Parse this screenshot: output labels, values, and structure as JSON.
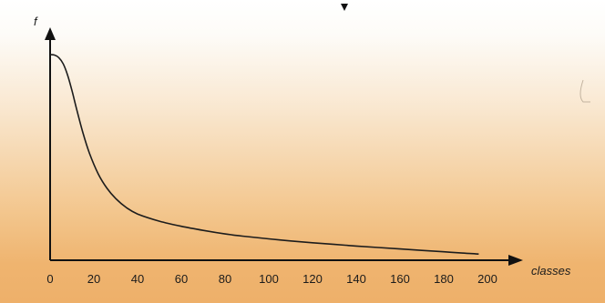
{
  "chart_data": {
    "type": "line",
    "title": "",
    "xlabel": "classes",
    "ylabel": "f",
    "xlim": [
      0,
      205
    ],
    "ylim": [
      0,
      1.05
    ],
    "x_ticks": [
      0,
      20,
      40,
      60,
      80,
      100,
      120,
      140,
      160,
      180,
      200
    ],
    "y_ticks": [],
    "grid": false,
    "legend": "none",
    "series": [
      {
        "color": "#1c1c1c",
        "x": [
          0,
          2,
          4,
          6,
          8,
          10,
          12,
          15,
          18,
          22,
          26,
          30,
          35,
          40,
          50,
          60,
          70,
          80,
          90,
          100,
          110,
          120,
          130,
          140,
          150,
          160,
          170,
          180,
          190,
          196
        ],
        "y": [
          1.0,
          0.998,
          0.985,
          0.955,
          0.9,
          0.825,
          0.74,
          0.62,
          0.52,
          0.42,
          0.35,
          0.3,
          0.255,
          0.225,
          0.19,
          0.165,
          0.145,
          0.128,
          0.115,
          0.104,
          0.094,
          0.085,
          0.077,
          0.069,
          0.062,
          0.055,
          0.048,
          0.041,
          0.034,
          0.03
        ]
      }
    ]
  }
}
